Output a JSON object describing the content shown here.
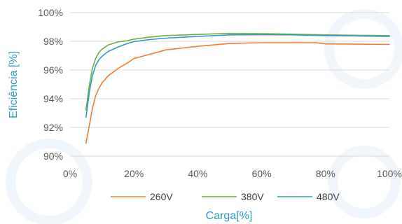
{
  "chart_data": {
    "type": "line",
    "xlabel": "Carga[%]",
    "ylabel": "Eficiência [%]",
    "xlim": [
      0,
      100
    ],
    "ylim": [
      90,
      100
    ],
    "x_ticks": [
      0,
      20,
      40,
      60,
      80,
      100
    ],
    "y_ticks": [
      90,
      92,
      94,
      96,
      98,
      100
    ],
    "x_tick_labels": [
      "0%",
      "20%",
      "40%",
      "60%",
      "80%",
      "100%"
    ],
    "y_tick_labels": [
      "90%",
      "92%",
      "94%",
      "96%",
      "98%",
      "100%"
    ],
    "grid": "horizontal",
    "legend_position": "bottom",
    "series": [
      {
        "name": "260V",
        "color": "#ED7D31",
        "x": [
          5,
          6,
          7,
          8,
          9,
          10,
          12,
          15,
          18,
          20,
          25,
          30,
          40,
          50,
          60,
          70,
          77,
          80,
          90,
          100
        ],
        "y": [
          90.9,
          92.1,
          93.3,
          94.2,
          94.7,
          95.1,
          95.6,
          96.1,
          96.5,
          96.8,
          97.1,
          97.4,
          97.65,
          97.85,
          97.9,
          97.9,
          97.9,
          97.82,
          97.8,
          97.78
        ]
      },
      {
        "name": "380V",
        "color": "#70AD47",
        "x": [
          5,
          6,
          7,
          8,
          9,
          10,
          12,
          15,
          18,
          20,
          25,
          30,
          40,
          50,
          60,
          70,
          80,
          90,
          100
        ],
        "y": [
          93.2,
          94.9,
          96.1,
          96.8,
          97.2,
          97.45,
          97.75,
          97.95,
          98.05,
          98.15,
          98.3,
          98.4,
          98.48,
          98.55,
          98.53,
          98.5,
          98.45,
          98.42,
          98.4
        ]
      },
      {
        "name": "480V",
        "color": "#2E9AC6",
        "x": [
          5,
          6,
          7,
          8,
          9,
          10,
          12,
          15,
          18,
          20,
          25,
          30,
          40,
          50,
          60,
          70,
          80,
          90,
          100
        ],
        "y": [
          92.7,
          94.4,
          95.6,
          96.3,
          96.7,
          96.95,
          97.3,
          97.6,
          97.85,
          97.98,
          98.12,
          98.22,
          98.34,
          98.45,
          98.46,
          98.45,
          98.4,
          98.37,
          98.34
        ]
      }
    ]
  }
}
